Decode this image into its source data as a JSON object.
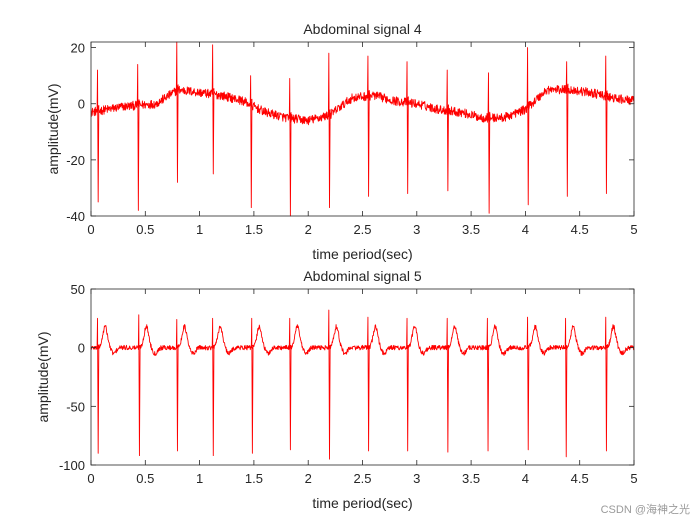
{
  "watermark": "CSDN @海神之光",
  "chart_data": [
    {
      "type": "line",
      "title": "Abdominal signal 4",
      "xlabel": "time period(sec)",
      "ylabel": "amplitude(mV)",
      "xlim": [
        0,
        5
      ],
      "ylim": [
        -40,
        22
      ],
      "xticks": [
        0,
        0.5,
        1,
        1.5,
        2,
        2.5,
        3,
        3.5,
        4,
        4.5,
        5
      ],
      "yticks": [
        -40,
        -20,
        0,
        20
      ],
      "series_color": "#ff0000",
      "series": [
        {
          "name": "Abdominal signal 4",
          "beat_times": [
            0.06,
            0.43,
            0.79,
            1.12,
            1.47,
            1.83,
            2.19,
            2.55,
            2.91,
            3.28,
            3.66,
            4.02,
            4.38,
            4.74
          ],
          "r_peak_mV": [
            12,
            14,
            22,
            21,
            10,
            9,
            18,
            17,
            15,
            12,
            11,
            20,
            15,
            17
          ],
          "s_trough_mV": [
            -35,
            -38,
            -28,
            -25,
            -37,
            -40,
            -37,
            -33,
            -32,
            -31,
            -39,
            -36,
            -33,
            -32
          ],
          "baseline_x": [
            0,
            0.3,
            0.6,
            0.8,
            1.0,
            1.2,
            1.4,
            1.6,
            1.8,
            2.0,
            2.2,
            2.4,
            2.6,
            2.8,
            3.0,
            3.2,
            3.4,
            3.6,
            3.8,
            4.0,
            4.2,
            4.4,
            4.6,
            4.8,
            5.0
          ],
          "baseline_y": [
            -3,
            -1,
            0,
            5,
            4,
            3,
            1,
            -3,
            -5,
            -6,
            -4,
            2,
            3,
            1,
            0,
            -2,
            -3,
            -5,
            -5,
            -2,
            5,
            5,
            4,
            2,
            1
          ]
        }
      ]
    },
    {
      "type": "line",
      "title": "Abdominal signal 5",
      "xlabel": "time period(sec)",
      "ylabel": "amplitude(mV)",
      "xlim": [
        0,
        5
      ],
      "ylim": [
        -100,
        50
      ],
      "xticks": [
        0,
        0.5,
        1,
        1.5,
        2,
        2.5,
        3,
        3.5,
        4,
        4.5,
        5
      ],
      "yticks": [
        -100,
        -50,
        0,
        50
      ],
      "series_color": "#ff0000",
      "series": [
        {
          "name": "Abdominal signal 5",
          "beat_times": [
            0.06,
            0.44,
            0.79,
            1.12,
            1.48,
            1.83,
            2.19,
            2.55,
            2.91,
            3.28,
            3.65,
            4.02,
            4.37,
            4.74
          ],
          "r_peak_mV": [
            25,
            28,
            24,
            25,
            25,
            25,
            32,
            26,
            25,
            25,
            25,
            26,
            25,
            26
          ],
          "s_trough_mV": [
            -90,
            -92,
            -88,
            -92,
            -90,
            -87,
            -95,
            -88,
            -88,
            -89,
            -88,
            -87,
            -93,
            -88
          ],
          "baseline_x": [
            0,
            1,
            2,
            3,
            4,
            5
          ],
          "baseline_y": [
            0,
            0,
            0,
            0,
            0,
            0
          ]
        }
      ]
    }
  ]
}
